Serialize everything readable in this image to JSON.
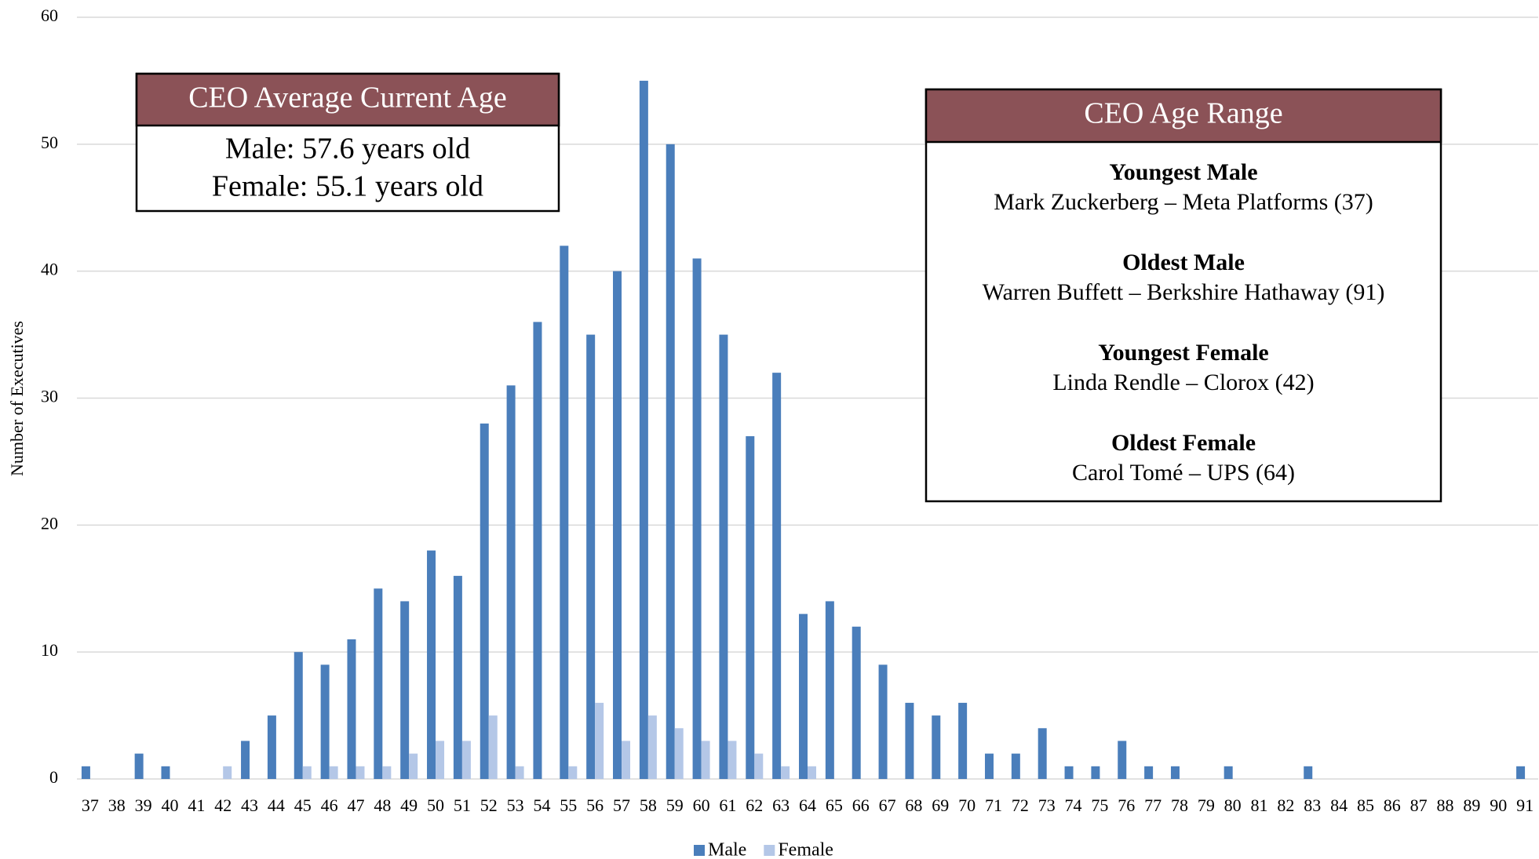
{
  "chart_data": {
    "type": "bar",
    "y_label": "Number of Executives",
    "categories": [
      37,
      38,
      39,
      40,
      41,
      42,
      43,
      44,
      45,
      46,
      47,
      48,
      49,
      50,
      51,
      52,
      53,
      54,
      55,
      56,
      57,
      58,
      59,
      60,
      61,
      62,
      63,
      64,
      65,
      66,
      67,
      68,
      69,
      70,
      71,
      72,
      73,
      74,
      75,
      76,
      77,
      78,
      79,
      80,
      81,
      82,
      83,
      84,
      85,
      86,
      87,
      88,
      89,
      90,
      91
    ],
    "series": [
      {
        "name": "Male",
        "color": "#4a7ebb",
        "values": [
          1,
          0,
          2,
          1,
          0,
          0,
          3,
          5,
          10,
          9,
          11,
          15,
          14,
          18,
          16,
          28,
          31,
          36,
          42,
          35,
          40,
          55,
          50,
          41,
          35,
          27,
          32,
          13,
          14,
          12,
          9,
          6,
          5,
          6,
          2,
          2,
          4,
          1,
          1,
          3,
          1,
          1,
          0,
          1,
          0,
          0,
          1,
          0,
          0,
          0,
          0,
          0,
          0,
          0,
          1
        ]
      },
      {
        "name": "Female",
        "color": "#b4c7e7",
        "values": [
          0,
          0,
          0,
          0,
          0,
          1,
          0,
          0,
          1,
          1,
          1,
          1,
          2,
          3,
          3,
          5,
          1,
          0,
          1,
          6,
          3,
          5,
          4,
          3,
          3,
          2,
          1,
          1,
          0,
          0,
          0,
          0,
          0,
          0,
          0,
          0,
          0,
          0,
          0,
          0,
          0,
          0,
          0,
          0,
          0,
          0,
          0,
          0,
          0,
          0,
          0,
          0,
          0,
          0,
          0
        ]
      }
    ],
    "ylim": [
      0,
      60
    ],
    "yticks": [
      0,
      10,
      20,
      30,
      40,
      50,
      60
    ],
    "grid": true,
    "legend": "bottom",
    "annotations": [
      {
        "title": "CEO Average Current Age",
        "lines": [
          "Male: 57.6 years old",
          "Female: 55.1 years old"
        ]
      },
      {
        "title": "CEO Age Range",
        "entries": [
          {
            "heading": "Youngest Male",
            "text": "Mark Zuckerberg – Meta Platforms (37)"
          },
          {
            "heading": "Oldest Male",
            "text": "Warren Buffett – Berkshire Hathaway (91)"
          },
          {
            "heading": "Youngest Female",
            "text": "Linda Rendle – Clorox (42)"
          },
          {
            "heading": "Oldest Female",
            "text": "Carol Tomé – UPS (64)"
          }
        ]
      }
    ]
  }
}
